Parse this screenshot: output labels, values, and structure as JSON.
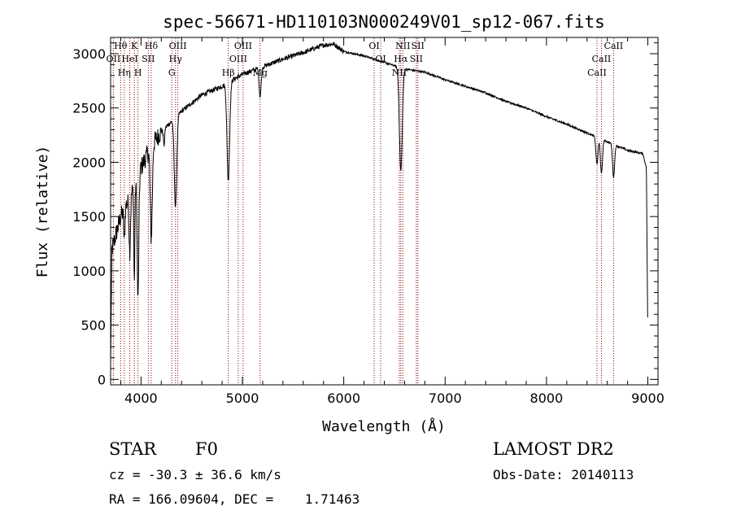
{
  "chart_data": {
    "type": "line",
    "title": "spec-56671-HD110103N000249V01_sp12-067.fits",
    "xlabel": "Wavelength (Å)",
    "ylabel": "Flux (relative)",
    "xlim": [
      3700,
      9100
    ],
    "ylim": [
      -50,
      3150
    ],
    "xticks": [
      4000,
      5000,
      6000,
      7000,
      8000,
      9000
    ],
    "yticks": [
      0,
      500,
      1000,
      1500,
      2000,
      2500,
      3000
    ],
    "grid": false,
    "spectrum_anchors": [
      [
        3700,
        1150
      ],
      [
        3800,
        1500
      ],
      [
        3900,
        1700
      ],
      [
        4000,
        1950
      ],
      [
        4100,
        2150
      ],
      [
        4200,
        2280
      ],
      [
        4400,
        2470
      ],
      [
        4600,
        2620
      ],
      [
        4800,
        2700
      ],
      [
        5000,
        2810
      ],
      [
        5200,
        2880
      ],
      [
        5400,
        2950
      ],
      [
        5600,
        3010
      ],
      [
        5800,
        3080
      ],
      [
        5900,
        3090
      ],
      [
        6000,
        3020
      ],
      [
        6200,
        2980
      ],
      [
        6400,
        2920
      ],
      [
        6600,
        2860
      ],
      [
        6800,
        2830
      ],
      [
        7000,
        2760
      ],
      [
        7200,
        2700
      ],
      [
        7400,
        2640
      ],
      [
        7600,
        2560
      ],
      [
        7800,
        2500
      ],
      [
        8000,
        2420
      ],
      [
        8200,
        2350
      ],
      [
        8400,
        2270
      ],
      [
        8600,
        2190
      ],
      [
        8800,
        2110
      ],
      [
        8950,
        2080
      ],
      [
        9000,
        1900
      ]
    ],
    "absorption_features": [
      {
        "wl": 3835,
        "depth": 300,
        "width": 6
      },
      {
        "wl": 3889,
        "depth": 500,
        "width": 7
      },
      {
        "wl": 3934,
        "depth": 900,
        "width": 5
      },
      {
        "wl": 3970,
        "depth": 1150,
        "width": 8
      },
      {
        "wl": 4101,
        "depth": 850,
        "width": 10
      },
      {
        "wl": 4227,
        "depth": 150,
        "width": 6
      },
      {
        "wl": 4340,
        "depth": 820,
        "width": 12
      },
      {
        "wl": 4861,
        "depth": 900,
        "width": 13
      },
      {
        "wl": 5175,
        "depth": 260,
        "width": 10
      },
      {
        "wl": 6563,
        "depth": 950,
        "width": 14
      },
      {
        "wl": 8498,
        "depth": 250,
        "width": 10
      },
      {
        "wl": 8542,
        "depth": 320,
        "width": 10
      },
      {
        "wl": 8662,
        "depth": 300,
        "width": 10
      }
    ],
    "line_markers": [
      {
        "wl": 3727,
        "label": "OII",
        "row": 1
      },
      {
        "wl": 3799,
        "label": "Hθ",
        "row": 0
      },
      {
        "wl": 3835,
        "label": "Hη",
        "row": 2
      },
      {
        "wl": 3889,
        "label": "HeI",
        "row": 1
      },
      {
        "wl": 3934,
        "label": "K",
        "row": 0
      },
      {
        "wl": 3970,
        "label": "H",
        "row": 2
      },
      {
        "wl": 4072,
        "label": "SII",
        "row": 1
      },
      {
        "wl": 4101,
        "label": "Hδ",
        "row": 0
      },
      {
        "wl": 4304,
        "label": "G",
        "row": 2
      },
      {
        "wl": 4340,
        "label": "Hγ",
        "row": 1
      },
      {
        "wl": 4363,
        "label": "OIII",
        "row": 0
      },
      {
        "wl": 4861,
        "label": "Hβ",
        "row": 2
      },
      {
        "wl": 4959,
        "label": "OIII",
        "row": 1
      },
      {
        "wl": 5007,
        "label": "OIII",
        "row": 0
      },
      {
        "wl": 5175,
        "label": "Mg",
        "row": 2
      },
      {
        "wl": 6300,
        "label": "OI",
        "row": 0
      },
      {
        "wl": 6364,
        "label": "OI",
        "row": 1
      },
      {
        "wl": 6548,
        "label": "NII",
        "row": 2
      },
      {
        "wl": 6563,
        "label": "Hα",
        "row": 1
      },
      {
        "wl": 6583,
        "label": "NII",
        "row": 0
      },
      {
        "wl": 6716,
        "label": "SII",
        "row": 1
      },
      {
        "wl": 6731,
        "label": "SII",
        "row": 0
      },
      {
        "wl": 8498,
        "label": "CaII",
        "row": 2
      },
      {
        "wl": 8542,
        "label": "CaII",
        "row": 1
      },
      {
        "wl": 8662,
        "label": "CaII",
        "row": 0
      }
    ],
    "colors": {
      "spectrum": "#000000",
      "markers": "#8b0000",
      "axes": "#000000"
    }
  },
  "footer": {
    "object_class": "STAR",
    "subclass": "F0",
    "redshift": "cz = -30.3 ± 36.6 km/s",
    "coords": "RA = 166.09604, DEC =    1.71463",
    "survey": "LAMOST DR2",
    "obs_date": "Obs-Date: 20140113"
  }
}
